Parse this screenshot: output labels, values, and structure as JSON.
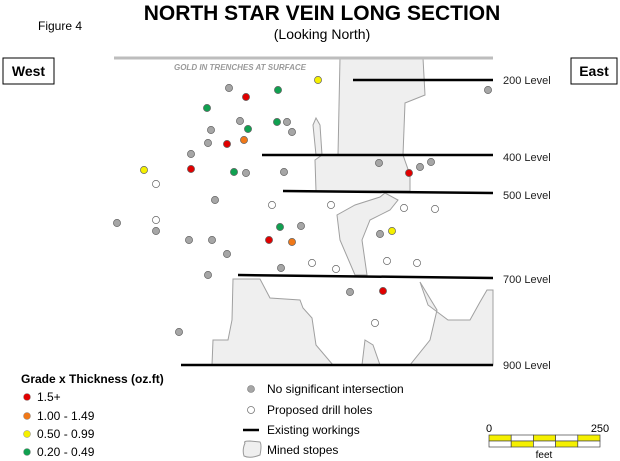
{
  "figure_label": "Figure 4",
  "title": "NORTH STAR VEIN LONG SECTION",
  "subtitle": "(Looking North)",
  "west_label": "West",
  "east_label": "East",
  "surface_note": "GOLD IN TRENCHES AT SURFACE",
  "levels": [
    {
      "label": "200 Level"
    },
    {
      "label": "400 Level"
    },
    {
      "label": "500 Level"
    },
    {
      "label": "700 Level"
    },
    {
      "label": "900 Level"
    }
  ],
  "colors": {
    "red": "#e00000",
    "orange": "#f07818",
    "yellow": "#f5f000",
    "green": "#10a050",
    "gray": "#a6a6a6",
    "white": "#ffffff",
    "stope": "#efefef",
    "scale_yellow": "#f5f000"
  },
  "legend_grade": {
    "title": "Grade x Thickness (oz.ft)",
    "items": [
      {
        "label": "1.5+",
        "color": "red"
      },
      {
        "label": "1.00 - 1.49",
        "color": "orange"
      },
      {
        "label": "0.50 - 0.99",
        "color": "yellow"
      },
      {
        "label": "0.20 - 0.49",
        "color": "green"
      }
    ]
  },
  "legend_symbols": [
    {
      "label": "No significant intersection",
      "symbol": "gray-dot"
    },
    {
      "label": "Proposed drill holes",
      "symbol": "white-dot"
    },
    {
      "label": "Existing workings",
      "symbol": "line"
    },
    {
      "label": "Mined stopes",
      "symbol": "stope"
    }
  ],
  "scale_bar": {
    "min_label": "0",
    "max_label": "250",
    "unit": "feet"
  }
}
